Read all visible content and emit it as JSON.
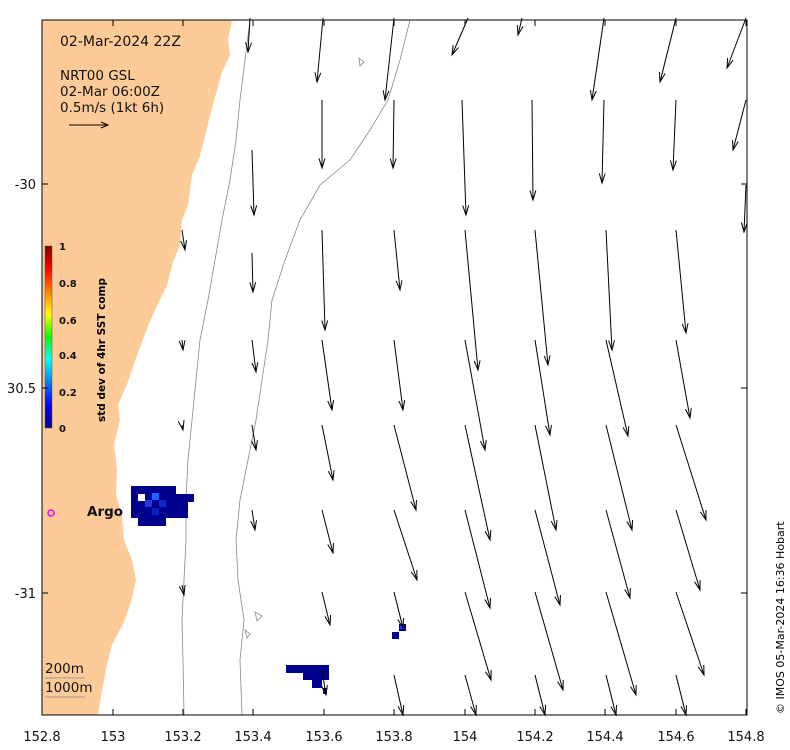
{
  "header": {
    "date": "02-Mar-2024 22Z",
    "product_line1": "NRT00 GSL",
    "product_line2": "02-Mar 06:00Z",
    "scale_label": "0.5m/s (1kt 6h)"
  },
  "axes": {
    "x_ticks": [
      "152.8",
      "153",
      "153.2",
      "153.4",
      "153.6",
      "153.8",
      "154",
      "154.2",
      "154.4",
      "154.6",
      "154.8"
    ],
    "y_ticks": [
      "-30",
      "30.5",
      "-31"
    ]
  },
  "colorbar": {
    "title": "std dev of 4hr SST comp",
    "ticks": [
      "1",
      "0.8",
      "0.6",
      "0.4",
      "0.2",
      "0"
    ]
  },
  "annotations": {
    "argo_label": "Argo",
    "depth_200": "200m",
    "depth_1000": "1000m",
    "credit": "© IMOS 05-Mar-2024 16:36 Hobart"
  },
  "colors": {
    "land": "#fdcb97",
    "argo_marker": "#ff00ff",
    "sst_low": "#000090",
    "sst_mid": "#0030ff"
  }
}
